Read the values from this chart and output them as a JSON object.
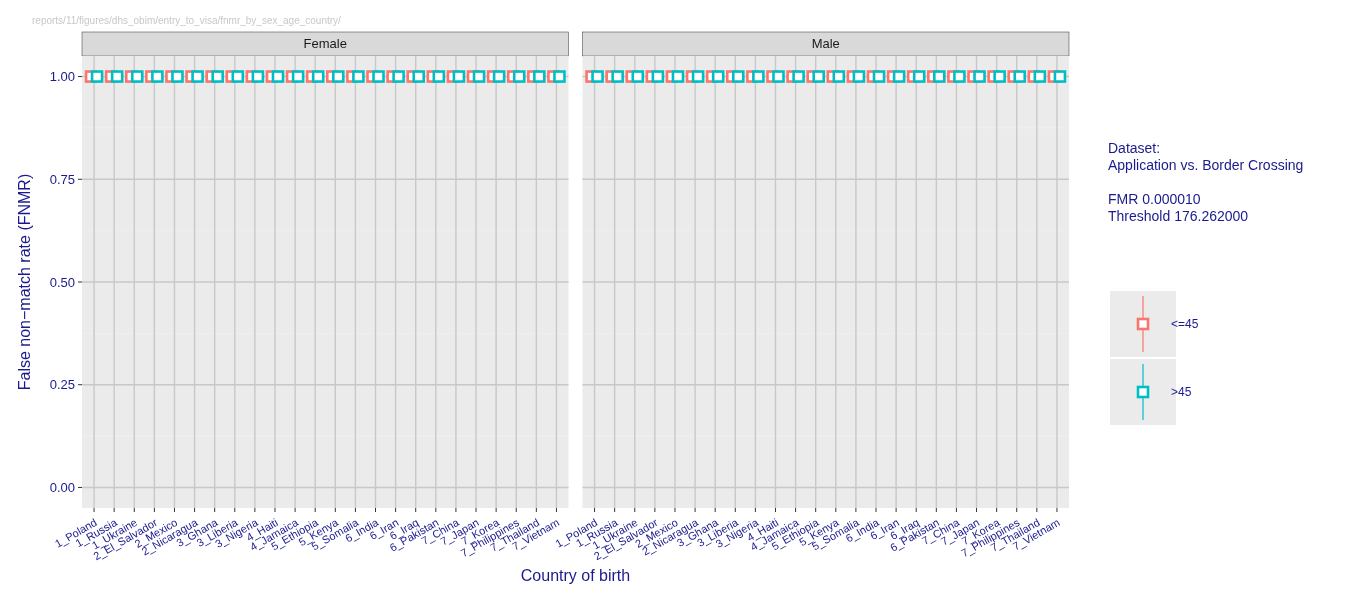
{
  "chart_data": [
    {
      "type": "scatter",
      "title": "Female",
      "ylabel": "False non−match rate (FNMR)",
      "xlabel": "Country of birth",
      "annotations": [
        "reports/11/figures/dhs_obim/entry_to_visa/fnmr_by_sex_age_country/"
      ],
      "legend_title": "Dataset:\nApplication vs. Border Crossing\n\nFMR 0.000010\nThreshold 176.262000",
      "legend": "right",
      "categories": [
        "1_Poland",
        "1_Russia",
        "1_Ukraine",
        "2_El_Salvador",
        "2_Mexico",
        "2_Nicaragua",
        "3_Ghana",
        "3_Liberia",
        "3_Nigeria",
        "4_Haiti",
        "4_Jamaica",
        "5_Ethiopia",
        "5_Kenya",
        "5_Somalia",
        "6_India",
        "6_Iran",
        "6_Iraq",
        "6_Pakistan",
        "7_China",
        "7_Japan",
        "7_Korea",
        "7_Philippines",
        "7_Thailand",
        "7_Vietnam"
      ],
      "series": [
        {
          "name": "<=45",
          "color": "#f8766d",
          "values": [
            1,
            1,
            1,
            1,
            1,
            1,
            1,
            1,
            1,
            1,
            1,
            1,
            1,
            1,
            1,
            1,
            1,
            1,
            1,
            1,
            1,
            1,
            1,
            1
          ]
        },
        {
          "name": ">45",
          "color": "#00bfc4",
          "values": [
            1,
            1,
            1,
            1,
            1,
            1,
            1,
            1,
            1,
            1,
            1,
            1,
            1,
            1,
            1,
            1,
            1,
            1,
            1,
            1,
            1,
            1,
            1,
            1
          ]
        }
      ],
      "ylim": [
        -0.05,
        1.05
      ],
      "yticks": [
        {
          "value": 0,
          "label": "0.00"
        },
        {
          "value": 0.25,
          "label": "0.25"
        },
        {
          "value": 0.5,
          "label": "0.50"
        },
        {
          "value": 0.75,
          "label": "0.75"
        },
        {
          "value": 1,
          "label": "1.00"
        }
      ],
      "grid": true,
      "marker": "square"
    },
    {
      "type": "scatter",
      "title": "Male",
      "tick_labels": "x",
      "categories": [
        "1_Poland",
        "1_Russia",
        "1_Ukraine",
        "2_El_Salvador",
        "2_Mexico",
        "2_Nicaragua",
        "3_Ghana",
        "3_Liberia",
        "3_Nigeria",
        "4_Haiti",
        "4_Jamaica",
        "5_Ethiopia",
        "5_Kenya",
        "5_Somalia",
        "6_India",
        "6_Iran",
        "6_Iraq",
        "6_Pakistan",
        "7_China",
        "7_Japan",
        "7_Korea",
        "7_Philippines",
        "7_Thailand",
        "7_Vietnam"
      ],
      "series": [
        {
          "color": "#f8766d",
          "values": [
            1,
            1,
            1,
            1,
            1,
            1,
            1,
            1,
            1,
            1,
            1,
            1,
            1,
            1,
            1,
            1,
            1,
            1,
            1,
            1,
            1,
            1,
            1,
            1
          ]
        },
        {
          "color": "#00bfc4",
          "values": [
            1,
            1,
            1,
            1,
            1,
            1,
            1,
            1,
            1,
            1,
            1,
            1,
            1,
            1,
            1,
            1,
            1,
            1,
            1,
            1,
            1,
            1,
            1,
            1
          ]
        }
      ],
      "ylim": [
        -0.05,
        1.05
      ],
      "yticks": [
        0,
        0.25,
        0.5,
        0.75,
        1
      ],
      "grid": true,
      "marker": "square"
    }
  ]
}
